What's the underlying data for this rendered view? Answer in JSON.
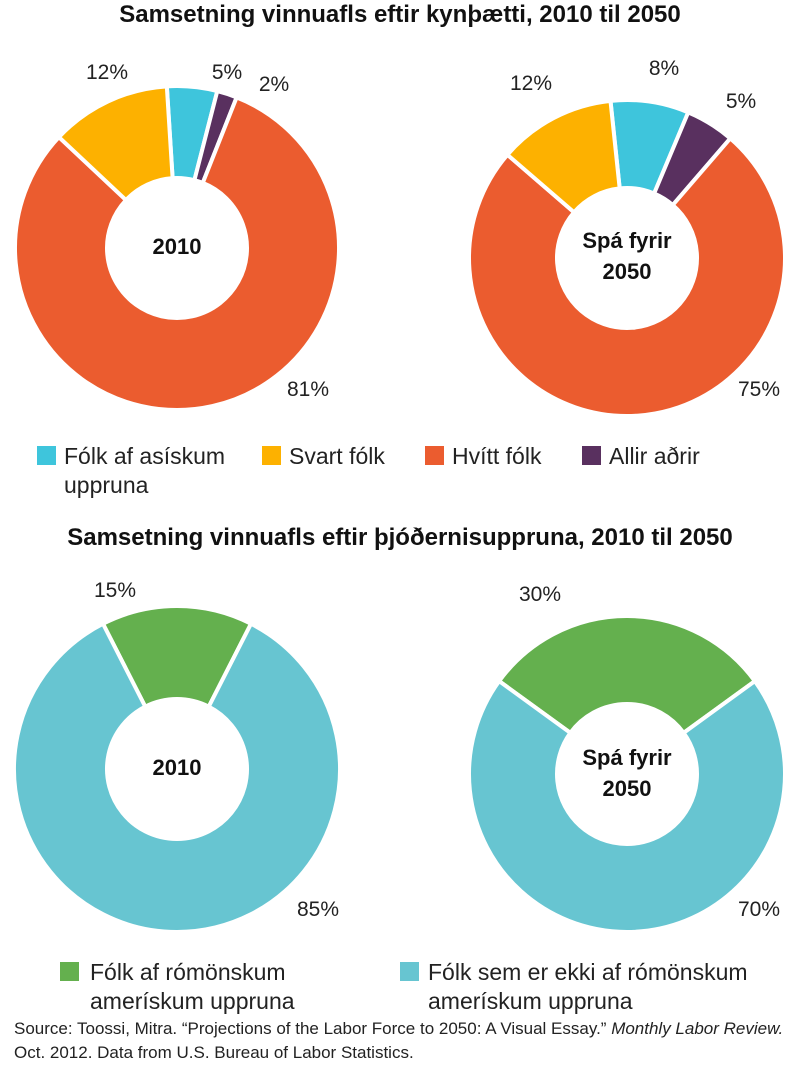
{
  "colors": {
    "asian": "#3ec5dc",
    "black": "#fdb100",
    "white": "#eb5c2f",
    "other": "#59305f",
    "hispanic": "#64b04e",
    "non_hispanic": "#67c5d1"
  },
  "chart_data": [
    {
      "type": "pie",
      "donut": true,
      "title": "Samsetning vinnuafls eftir kynþætti, 2010 til 2050",
      "center_label": [
        "2010"
      ],
      "series": [
        {
          "name": "Fólk af asískum uppruna",
          "value": 5,
          "label": "5%",
          "color_key": "asian"
        },
        {
          "name": "Allir aðrir",
          "value": 2,
          "label": "2%",
          "color_key": "other"
        },
        {
          "name": "Hvítt fólk",
          "value": 81,
          "label": "81%",
          "color_key": "white"
        },
        {
          "name": "Svart fólk",
          "value": 12,
          "label": "12%",
          "color_key": "black"
        }
      ]
    },
    {
      "type": "pie",
      "donut": true,
      "title": "Samsetning vinnuafls eftir kynþætti, 2010 til 2050",
      "center_label": [
        "Spá fyrir",
        "2050"
      ],
      "series": [
        {
          "name": "Fólk af asískum uppruna",
          "value": 8,
          "label": "8%",
          "color_key": "asian"
        },
        {
          "name": "Allir aðrir",
          "value": 5,
          "label": "5%",
          "color_key": "other"
        },
        {
          "name": "Hvítt fólk",
          "value": 75,
          "label": "75%",
          "color_key": "white"
        },
        {
          "name": "Svart fólk",
          "value": 12,
          "label": "12%",
          "color_key": "black"
        }
      ]
    },
    {
      "type": "pie",
      "donut": true,
      "title": "Samsetning vinnuafls eftir þjóðernisuppruna, 2010 til 2050",
      "center_label": [
        "2010"
      ],
      "series": [
        {
          "name": "Fólk af rómönskum amerískum uppruna",
          "value": 15,
          "label": "15%",
          "color_key": "hispanic"
        },
        {
          "name": "Fólk sem er ekki af rómönskum amerískum uppruna",
          "value": 85,
          "label": "85%",
          "color_key": "non_hispanic"
        }
      ]
    },
    {
      "type": "pie",
      "donut": true,
      "title": "Samsetning vinnuafls eftir þjóðernisuppruna, 2010 til 2050",
      "center_label": [
        "Spá fyrir",
        "2050"
      ],
      "series": [
        {
          "name": "Fólk af rómönskum amerískum uppruna",
          "value": 30,
          "label": "30%",
          "color_key": "hispanic"
        },
        {
          "name": "Fólk sem er ekki af rómönskum amerískum uppruna",
          "value": 70,
          "label": "70%",
          "color_key": "non_hispanic"
        }
      ]
    }
  ],
  "titles": {
    "race": "Samsetning vinnuafls eftir kynþætti, 2010 til 2050",
    "ethnicity": "Samsetning vinnuafls eftir þjóðernisuppruna, 2010 til 2050"
  },
  "legend_race": [
    {
      "lines": [
        "Fólk af asískum",
        "uppruna"
      ],
      "color_key": "asian"
    },
    {
      "lines": [
        "Svart fólk"
      ],
      "color_key": "black"
    },
    {
      "lines": [
        "Hvítt fólk"
      ],
      "color_key": "white"
    },
    {
      "lines": [
        "Allir aðrir"
      ],
      "color_key": "other"
    }
  ],
  "legend_ethnicity": [
    {
      "lines": [
        "Fólk af rómönskum",
        "amerískum uppruna"
      ],
      "color_key": "hispanic"
    },
    {
      "lines": [
        "Fólk sem er ekki af rómönskum",
        "amerískum uppruna"
      ],
      "color_key": "non_hispanic"
    }
  ],
  "source": {
    "prefix": "Source: Toossi, Mitra. “Projections of the Labor Force to 2050: A Visual Essay.” ",
    "journal": "Monthly Labor Review.",
    "suffix": " Oct. 2012. Data from U.S. Bureau of Labor Statistics."
  }
}
